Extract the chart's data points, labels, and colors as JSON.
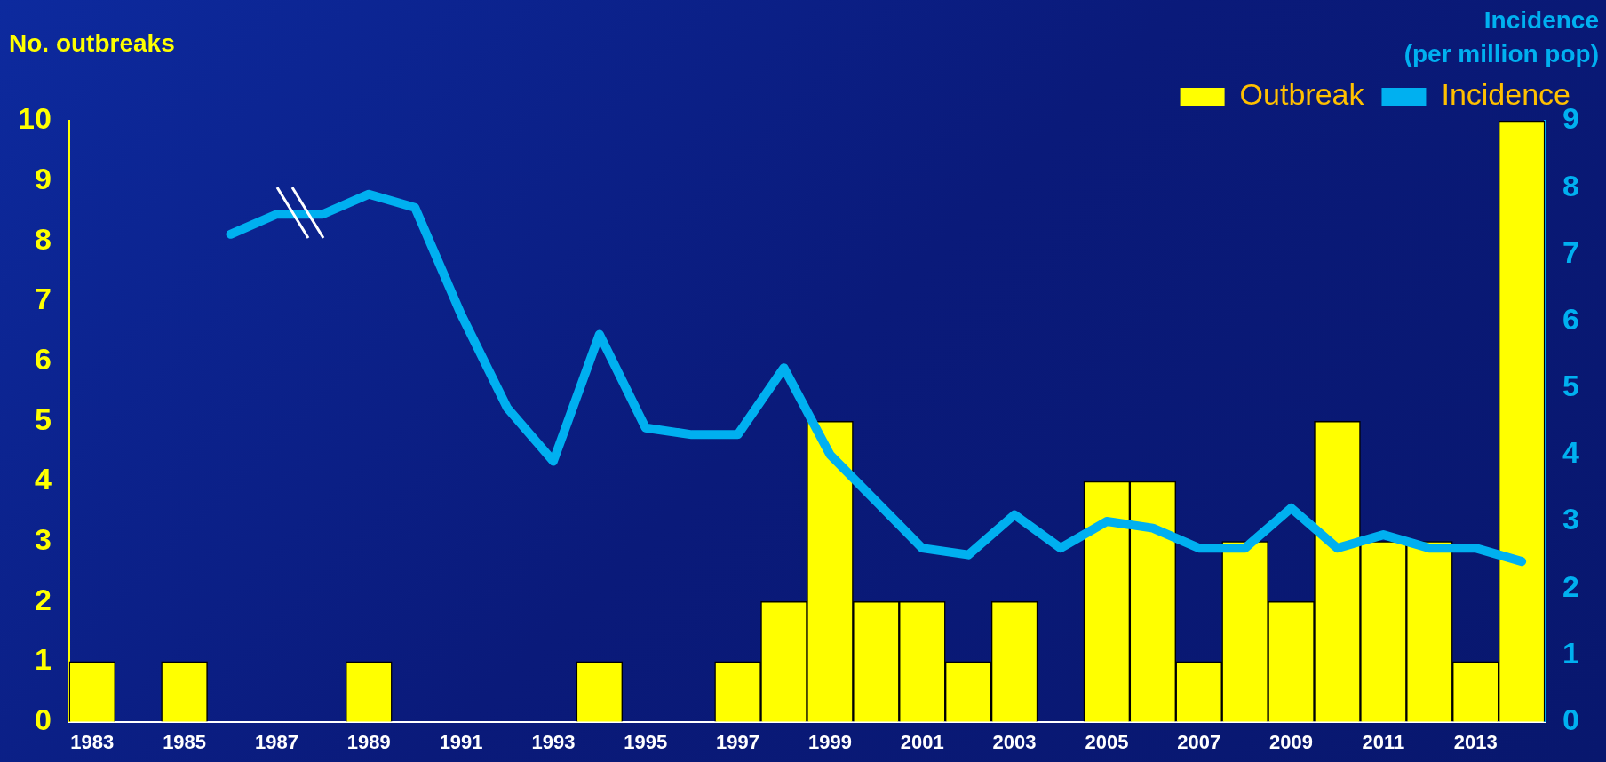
{
  "chart_data": {
    "type": "bar",
    "ylabel": "No. outbreaks",
    "y2label": "Incidence\n(per million pop)",
    "categories": [
      "1983",
      null,
      "1985",
      null,
      "1987",
      null,
      "1989",
      null,
      "1991",
      null,
      "1993",
      null,
      "1995",
      null,
      "1997",
      null,
      "1999",
      null,
      "2001",
      null,
      "2003",
      null,
      "2005",
      null,
      "2007",
      null,
      "2009",
      null,
      "2011",
      null,
      "2013",
      null
    ],
    "series": [
      {
        "name": "Outbreak",
        "color": "#ffff00",
        "values": [
          1,
          0,
          1,
          0,
          0,
          0,
          1,
          0,
          0,
          0,
          0,
          1,
          0,
          0,
          1,
          2,
          5,
          2,
          2,
          1,
          2,
          0,
          4,
          4,
          1,
          3,
          2,
          5,
          3,
          3,
          1,
          10
        ]
      },
      {
        "name": "Incidence",
        "type": "line",
        "axis": "y2",
        "color": "#00b0f0",
        "values": [
          null,
          null,
          null,
          7.3,
          7.6,
          7.6,
          7.9,
          7.7,
          6.1,
          4.7,
          3.9,
          5.8,
          4.4,
          4.3,
          4.3,
          5.3,
          4.0,
          3.3,
          2.6,
          2.5,
          3.1,
          2.6,
          3.0,
          2.9,
          2.6,
          2.6,
          3.2,
          2.6,
          2.8,
          2.6,
          2.6,
          2.4
        ]
      }
    ],
    "ylim": [
      0,
      10
    ],
    "yticks": [
      0,
      1,
      2,
      3,
      4,
      5,
      6,
      7,
      8,
      9,
      10
    ],
    "y2lim": [
      0,
      9
    ],
    "y2ticks": [
      0,
      1,
      2,
      3,
      4,
      5,
      6,
      7,
      8,
      9
    ],
    "grid": false,
    "legend": "top right",
    "marker": "none",
    "line_style": "solid"
  }
}
